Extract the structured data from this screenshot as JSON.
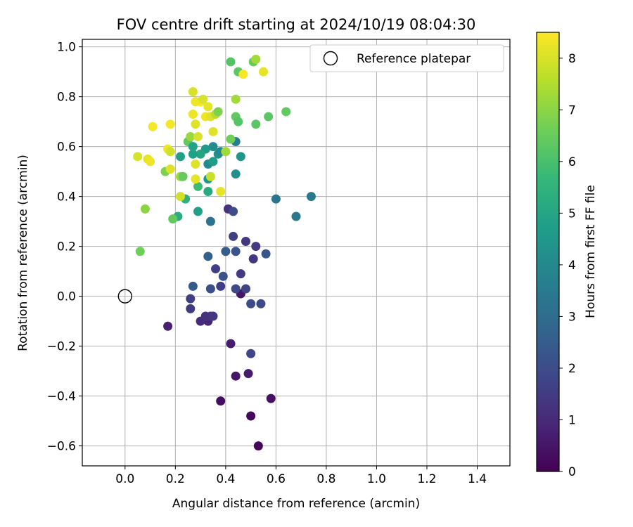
{
  "chart_data": {
    "type": "scatter",
    "title": "FOV centre drift starting at 2024/10/19 08:04:30",
    "xlabel": "Angular distance from reference (arcmin)",
    "ylabel": "Rotation from reference (arcmin)",
    "xlim": [
      -0.17,
      1.53
    ],
    "ylim": [
      -0.68,
      1.03
    ],
    "x_ticks": [
      0.0,
      0.2,
      0.4,
      0.6,
      0.8,
      1.0,
      1.2,
      1.4
    ],
    "y_ticks": [
      -0.6,
      -0.4,
      -0.2,
      0.0,
      0.2,
      0.4,
      0.6,
      0.8,
      1.0
    ],
    "x_tick_labels": [
      "0.0",
      "0.2",
      "0.4",
      "0.6",
      "0.8",
      "1.0",
      "1.2",
      "1.4"
    ],
    "y_tick_labels": [
      "−0.6",
      "−0.4",
      "−0.2",
      "0.0",
      "0.2",
      "0.4",
      "0.6",
      "0.8",
      "1.0"
    ],
    "grid": true,
    "colormap": "viridis",
    "colorbar": {
      "label": "Hours from first FF file",
      "range": [
        0,
        8.5
      ],
      "ticks": [
        0,
        1,
        2,
        3,
        4,
        5,
        6,
        7,
        8
      ],
      "tick_labels": [
        "0",
        "1",
        "2",
        "3",
        "4",
        "5",
        "6",
        "7",
        "8"
      ]
    },
    "legend": {
      "position": "top-right",
      "entries": [
        {
          "label": "Reference platepar",
          "marker": "open-circle"
        }
      ]
    },
    "reference_point": {
      "x": 0.0,
      "y": 0.0
    },
    "series": [
      {
        "points": [
          [
            0.53,
            -0.6,
            0.1
          ],
          [
            0.5,
            -0.48,
            0.2
          ],
          [
            0.38,
            -0.42,
            0.3
          ],
          [
            0.58,
            -0.41,
            0.4
          ],
          [
            0.44,
            -0.32,
            0.5
          ],
          [
            0.49,
            -0.31,
            0.6
          ],
          [
            0.42,
            -0.19,
            0.7
          ],
          [
            0.17,
            -0.12,
            0.8
          ],
          [
            0.33,
            -0.1,
            0.9
          ],
          [
            0.3,
            -0.1,
            1.1
          ],
          [
            0.32,
            -0.08,
            1.2
          ],
          [
            0.34,
            -0.08,
            1.3
          ],
          [
            0.35,
            -0.08,
            1.4
          ],
          [
            0.26,
            -0.05,
            1.5
          ],
          [
            0.26,
            -0.01,
            1.6
          ],
          [
            0.46,
            0.01,
            0.5
          ],
          [
            0.5,
            -0.23,
            1.8
          ],
          [
            0.54,
            -0.03,
            1.9
          ],
          [
            0.5,
            -0.03,
            2.0
          ],
          [
            0.48,
            0.03,
            1.7
          ],
          [
            0.44,
            0.03,
            1.9
          ],
          [
            0.34,
            0.03,
            2.1
          ],
          [
            0.38,
            0.04,
            1.6
          ],
          [
            0.27,
            0.04,
            2.4
          ],
          [
            0.39,
            0.08,
            2.2
          ],
          [
            0.46,
            0.09,
            1.5
          ],
          [
            0.36,
            0.11,
            1.6
          ],
          [
            0.51,
            0.15,
            1.4
          ],
          [
            0.33,
            0.16,
            2.6
          ],
          [
            0.4,
            0.18,
            2.5
          ],
          [
            0.44,
            0.18,
            2.2
          ],
          [
            0.56,
            0.17,
            2.3
          ],
          [
            0.52,
            0.2,
            1.5
          ],
          [
            0.48,
            0.22,
            1.4
          ],
          [
            0.43,
            0.24,
            1.6
          ],
          [
            0.41,
            0.35,
            1.2
          ],
          [
            0.43,
            0.34,
            2.0
          ],
          [
            0.34,
            0.3,
            3.2
          ],
          [
            0.6,
            0.39,
            3.3
          ],
          [
            0.68,
            0.32,
            3.4
          ],
          [
            0.74,
            0.4,
            3.5
          ],
          [
            0.29,
            0.34,
            4.8
          ],
          [
            0.21,
            0.32,
            5.2
          ],
          [
            0.24,
            0.39,
            5.4
          ],
          [
            0.33,
            0.42,
            5.1
          ],
          [
            0.29,
            0.44,
            5.8
          ],
          [
            0.44,
            0.49,
            4.2
          ],
          [
            0.33,
            0.47,
            4.5
          ],
          [
            0.33,
            0.53,
            4.0
          ],
          [
            0.35,
            0.54,
            4.7
          ],
          [
            0.37,
            0.57,
            4.3
          ],
          [
            0.38,
            0.58,
            4.0
          ],
          [
            0.46,
            0.56,
            4.4
          ],
          [
            0.44,
            0.62,
            3.6
          ],
          [
            0.4,
            0.58,
            7.3
          ],
          [
            0.35,
            0.6,
            4.1
          ],
          [
            0.32,
            0.59,
            4.6
          ],
          [
            0.3,
            0.57,
            5.0
          ],
          [
            0.27,
            0.57,
            4.8
          ],
          [
            0.25,
            0.62,
            6.4
          ],
          [
            0.26,
            0.64,
            7.2
          ],
          [
            0.27,
            0.6,
            4.9
          ],
          [
            0.22,
            0.56,
            4.8
          ],
          [
            0.16,
            0.5,
            6.8
          ],
          [
            0.22,
            0.48,
            7.3
          ],
          [
            0.23,
            0.48,
            6.5
          ],
          [
            0.19,
            0.31,
            6.4
          ],
          [
            0.08,
            0.35,
            7.0
          ],
          [
            0.06,
            0.18,
            6.6
          ],
          [
            0.05,
            0.56,
            8.0
          ],
          [
            0.09,
            0.55,
            8.2
          ],
          [
            0.1,
            0.54,
            8.3
          ],
          [
            0.18,
            0.51,
            8.1
          ],
          [
            0.17,
            0.59,
            8.3
          ],
          [
            0.18,
            0.58,
            7.9
          ],
          [
            0.11,
            0.68,
            8.4
          ],
          [
            0.18,
            0.69,
            8.4
          ],
          [
            0.22,
            0.4,
            7.9
          ],
          [
            0.28,
            0.47,
            8.2
          ],
          [
            0.34,
            0.48,
            7.8
          ],
          [
            0.38,
            0.42,
            8.2
          ],
          [
            0.28,
            0.53,
            8.1
          ],
          [
            0.29,
            0.64,
            8.0
          ],
          [
            0.28,
            0.69,
            8.1
          ],
          [
            0.35,
            0.66,
            8.1
          ],
          [
            0.27,
            0.73,
            8.3
          ],
          [
            0.32,
            0.72,
            8.3
          ],
          [
            0.34,
            0.72,
            8.1
          ],
          [
            0.36,
            0.73,
            7.6
          ],
          [
            0.37,
            0.74,
            6.8
          ],
          [
            0.33,
            0.76,
            8.2
          ],
          [
            0.3,
            0.78,
            8.4
          ],
          [
            0.28,
            0.78,
            8.3
          ],
          [
            0.31,
            0.79,
            8.0
          ],
          [
            0.27,
            0.82,
            8.0
          ],
          [
            0.42,
            0.63,
            6.6
          ],
          [
            0.44,
            0.72,
            6.4
          ],
          [
            0.45,
            0.7,
            6.2
          ],
          [
            0.52,
            0.69,
            6.3
          ],
          [
            0.57,
            0.72,
            6.3
          ],
          [
            0.64,
            0.74,
            6.4
          ],
          [
            0.44,
            0.79,
            7.3
          ],
          [
            0.42,
            0.94,
            6.2
          ],
          [
            0.45,
            0.9,
            6.3
          ],
          [
            0.47,
            0.89,
            8.4
          ],
          [
            0.51,
            0.94,
            6.5
          ],
          [
            0.52,
            0.95,
            7.3
          ],
          [
            0.55,
            0.9,
            8.2
          ]
        ]
      }
    ]
  }
}
